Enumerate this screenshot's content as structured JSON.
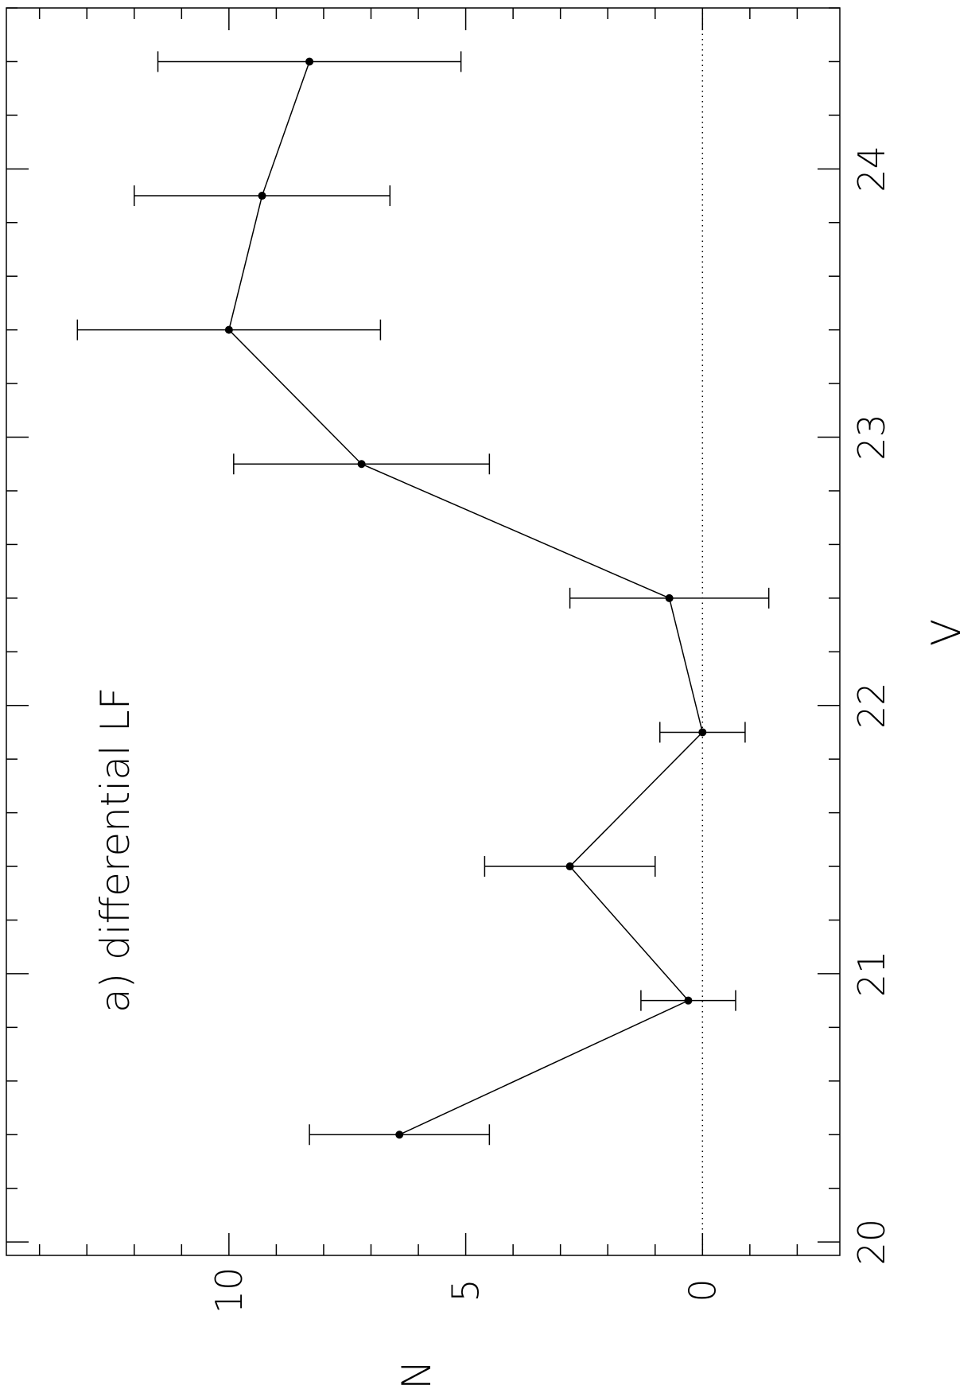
{
  "chart_data": {
    "type": "scatter",
    "orientation": "rotated-90-cw",
    "xlabel": "V",
    "ylabel": "N",
    "annotation": "a) differential LF",
    "xlim": [
      19.95,
      24.6
    ],
    "ylim": [
      -2.9,
      14.7
    ],
    "xticks": [
      20,
      21,
      22,
      23,
      24
    ],
    "xtick_labels": [
      "20",
      "21",
      "22",
      "23",
      "24"
    ],
    "yticks": [
      0,
      5,
      10
    ],
    "ytick_labels": [
      "0",
      "5",
      "10"
    ],
    "x_minor_step": 0.2,
    "y_minor_step": 1,
    "reference_line": {
      "y": 0,
      "style": "dotted"
    },
    "series": [
      {
        "x": [
          20.4,
          20.9,
          21.4,
          21.9,
          22.4,
          22.9,
          23.4,
          23.9,
          24.4
        ],
        "y": [
          6.4,
          0.3,
          2.8,
          0.0,
          0.7,
          7.2,
          10.0,
          9.3,
          8.3
        ],
        "yerr": [
          1.9,
          1.0,
          1.8,
          0.9,
          2.1,
          2.7,
          3.2,
          2.7,
          3.2
        ]
      }
    ]
  }
}
